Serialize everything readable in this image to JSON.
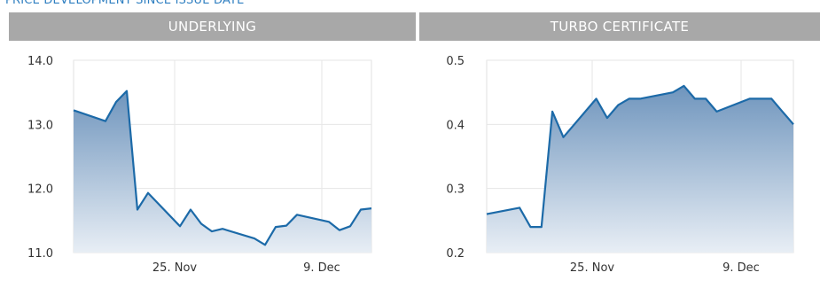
{
  "header": {
    "title": "PRICE DEVELOPMENT SINCE ISSUE DATE"
  },
  "tabs": [
    {
      "label": "UNDERLYING"
    },
    {
      "label": "TURBO CERTIFICATE"
    }
  ],
  "colors": {
    "line": "#1c6aa8",
    "area_top": "#6f95bd",
    "area_bottom": "#e8eef5",
    "tab_bg": "#a8a8a8",
    "title": "#2f7fc1"
  },
  "chart_data": [
    {
      "type": "area",
      "title": "UNDERLYING",
      "xlabel": "",
      "ylabel": "",
      "x_ticks": [
        "25. Nov",
        "9. Dec"
      ],
      "y_ticks": [
        "14.0",
        "13.0",
        "12.0",
        "11.0"
      ],
      "ylim": [
        11.0,
        14.0
      ],
      "grid": true,
      "series": [
        {
          "x": [
            "2019-11-15",
            "2019-11-18",
            "2019-11-19",
            "2019-11-20",
            "2019-11-21",
            "2019-11-22",
            "2019-11-25",
            "2019-11-26",
            "2019-11-27",
            "2019-11-28",
            "2019-11-29",
            "2019-12-02",
            "2019-12-03",
            "2019-12-04",
            "2019-12-05",
            "2019-12-06",
            "2019-12-09",
            "2019-12-10",
            "2019-12-11",
            "2019-12-12",
            "2019-12-13"
          ],
          "values": [
            13.22,
            13.05,
            13.35,
            13.52,
            11.67,
            11.93,
            11.41,
            11.67,
            11.45,
            11.33,
            11.37,
            11.22,
            11.12,
            11.4,
            11.42,
            11.59,
            11.48,
            11.35,
            11.41,
            11.67,
            11.69
          ]
        }
      ]
    },
    {
      "type": "area",
      "title": "TURBO CERTIFICATE",
      "xlabel": "",
      "ylabel": "",
      "x_ticks": [
        "25. Nov",
        "9. Dec"
      ],
      "y_ticks": [
        "0.5",
        "0.4",
        "0.3",
        "0.2"
      ],
      "ylim": [
        0.2,
        0.5
      ],
      "grid": true,
      "series": [
        {
          "x": [
            "2019-11-15",
            "2019-11-18",
            "2019-11-19",
            "2019-11-20",
            "2019-11-21",
            "2019-11-22",
            "2019-11-25",
            "2019-11-26",
            "2019-11-27",
            "2019-11-28",
            "2019-11-29",
            "2019-12-02",
            "2019-12-03",
            "2019-12-04",
            "2019-12-05",
            "2019-12-06",
            "2019-12-09",
            "2019-12-10",
            "2019-12-11",
            "2019-12-12",
            "2019-12-13"
          ],
          "values": [
            0.26,
            0.27,
            0.24,
            0.24,
            0.42,
            0.38,
            0.44,
            0.41,
            0.43,
            0.44,
            0.44,
            0.45,
            0.46,
            0.44,
            0.44,
            0.42,
            0.44,
            0.44,
            0.44,
            0.42,
            0.4
          ]
        }
      ]
    }
  ]
}
